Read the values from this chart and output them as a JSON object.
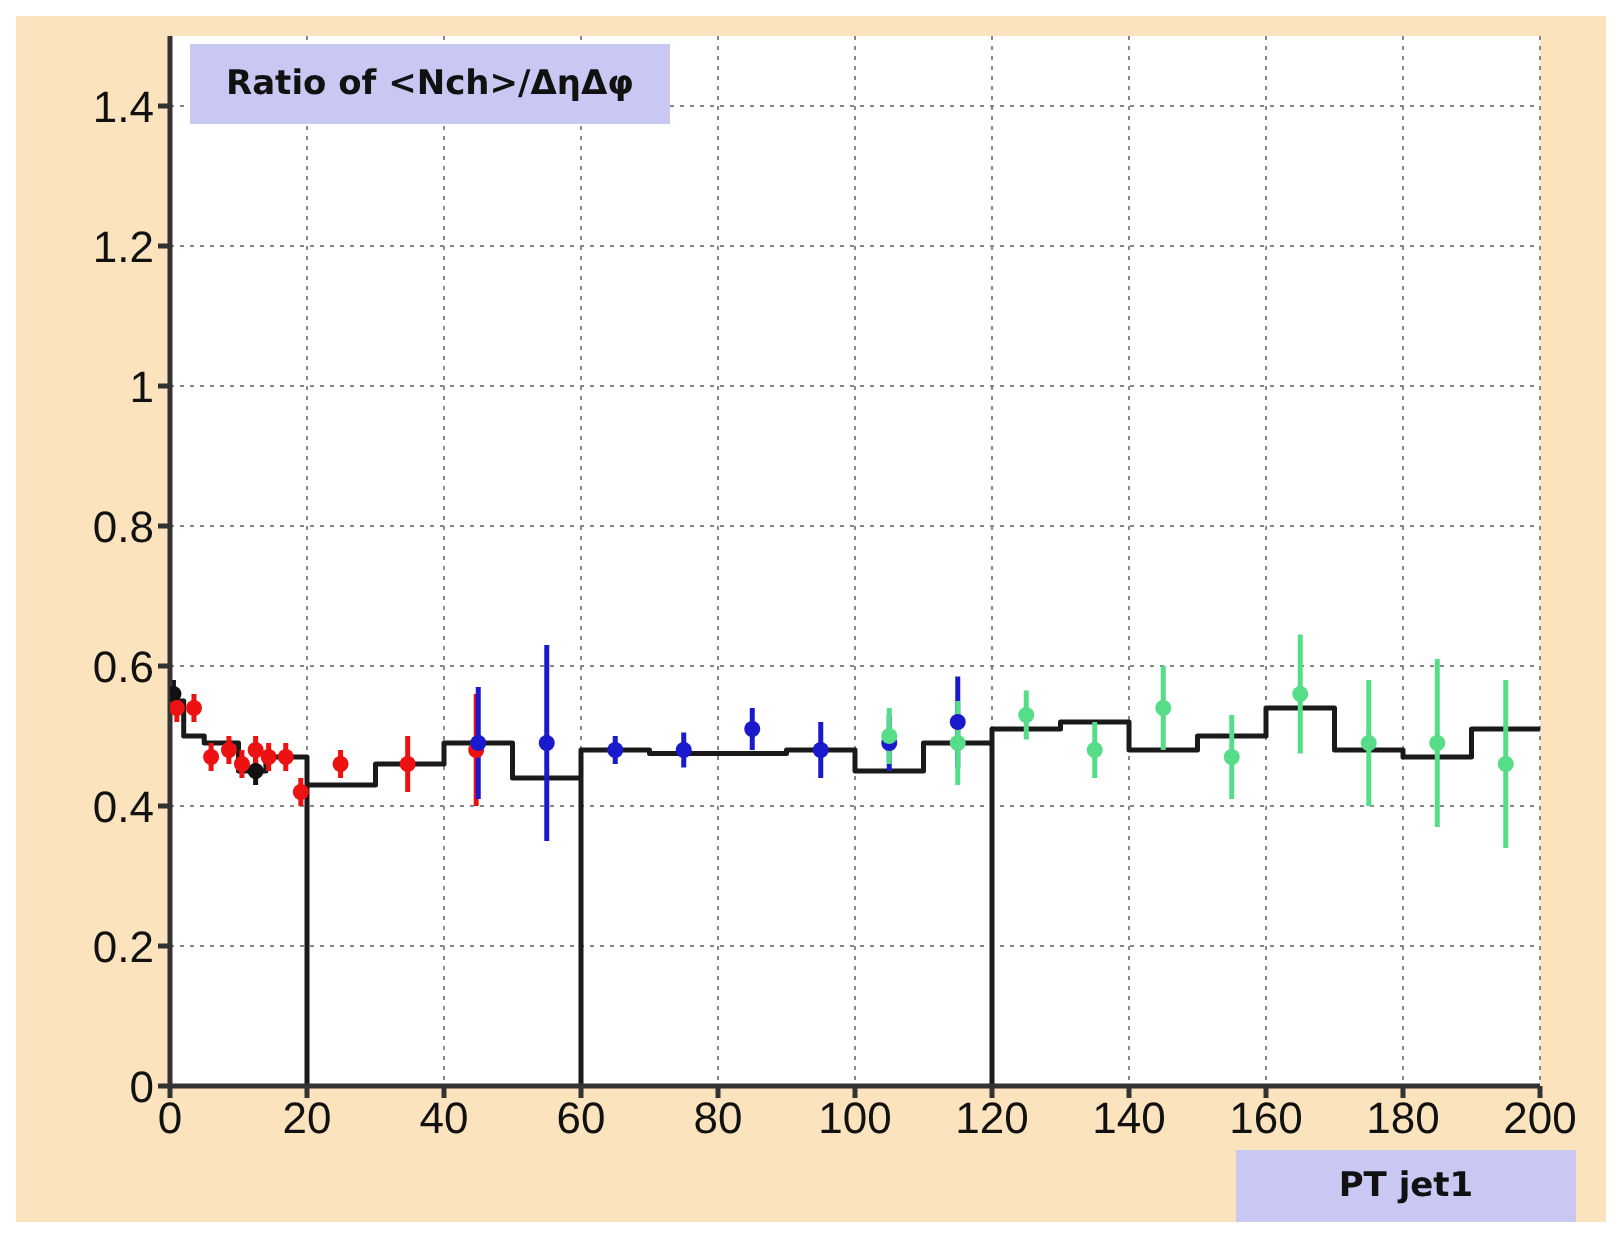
{
  "chart_data": {
    "type": "scatter",
    "title": "Ratio of <Nch>/ΔηΔφ",
    "xlabel": "PT jet1",
    "xlim": [
      0,
      200
    ],
    "xticks": [
      0,
      20,
      40,
      60,
      80,
      100,
      120,
      140,
      160,
      180,
      200
    ],
    "ylim": [
      0,
      1.5
    ],
    "yticks": [
      0,
      0.2,
      0.4,
      0.6,
      0.8,
      1,
      1.2,
      1.4
    ],
    "grid": true,
    "marker": "circle",
    "series": [
      {
        "type": "step",
        "marker": "none",
        "color": "#1a1a1a",
        "x": [
          0,
          2,
          5,
          10,
          14,
          20,
          20,
          30,
          40,
          50,
          60,
          60,
          70,
          90,
          100,
          110,
          120,
          120,
          130,
          140,
          150,
          160,
          170,
          180,
          190,
          200
        ],
        "values": [
          0.55,
          0.5,
          0.49,
          0.45,
          0.47,
          0,
          0.43,
          0.46,
          0.49,
          0.44,
          0,
          0.48,
          0.475,
          0.48,
          0.45,
          0.49,
          0,
          0.51,
          0.52,
          0.48,
          0.5,
          0.54,
          0.48,
          0.47,
          0.51,
          0.51
        ]
      },
      {
        "color": "#111111",
        "x": [
          0.5,
          12.5
        ],
        "values": [
          0.56,
          0.45
        ],
        "errors": [
          0.02,
          0.02
        ]
      },
      {
        "color": "#ee1111",
        "x": [
          1,
          3.5,
          6,
          8.6,
          10.5,
          12.5,
          14.4,
          16.9,
          19.1,
          24.9,
          34.7,
          44.7
        ],
        "values": [
          0.54,
          0.54,
          0.47,
          0.48,
          0.46,
          0.48,
          0.47,
          0.47,
          0.42,
          0.46,
          0.46,
          0.48
        ],
        "errors": [
          0.02,
          0.02,
          0.02,
          0.02,
          0.02,
          0.02,
          0.02,
          0.02,
          0.02,
          0.02,
          0.04,
          0.08
        ]
      },
      {
        "color": "#1a1acc",
        "x": [
          45,
          55,
          65,
          75,
          85,
          95,
          105,
          115
        ],
        "values": [
          0.49,
          0.49,
          0.48,
          0.48,
          0.51,
          0.48,
          0.49,
          0.52
        ],
        "errors": [
          0.08,
          0.14,
          0.02,
          0.025,
          0.03,
          0.04,
          0.04,
          0.065
        ]
      },
      {
        "color": "#55dd88",
        "x": [
          105,
          115,
          125,
          135,
          145,
          155,
          165,
          175,
          185,
          195
        ],
        "values": [
          0.5,
          0.49,
          0.53,
          0.48,
          0.54,
          0.47,
          0.56,
          0.49,
          0.49,
          0.46
        ],
        "errors": [
          0.04,
          0.06,
          0.035,
          0.04,
          0.06,
          0.06,
          0.085,
          0.09,
          0.12,
          0.12
        ]
      }
    ]
  }
}
